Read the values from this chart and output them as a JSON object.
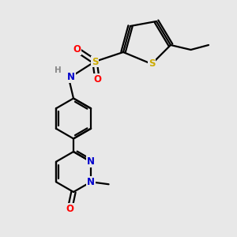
{
  "bg_color": "#e8e8e8",
  "bond_color": "#000000",
  "bond_width": 1.6,
  "atom_colors": {
    "S_sulfone": "#ccaa00",
    "S_thio": "#ccaa00",
    "N": "#0000cc",
    "O": "#ff0000",
    "C": "#000000",
    "H": "#888888"
  },
  "font_size_atom": 8.5,
  "layout": {
    "xlim": [
      0,
      10
    ],
    "ylim": [
      0,
      10
    ]
  }
}
